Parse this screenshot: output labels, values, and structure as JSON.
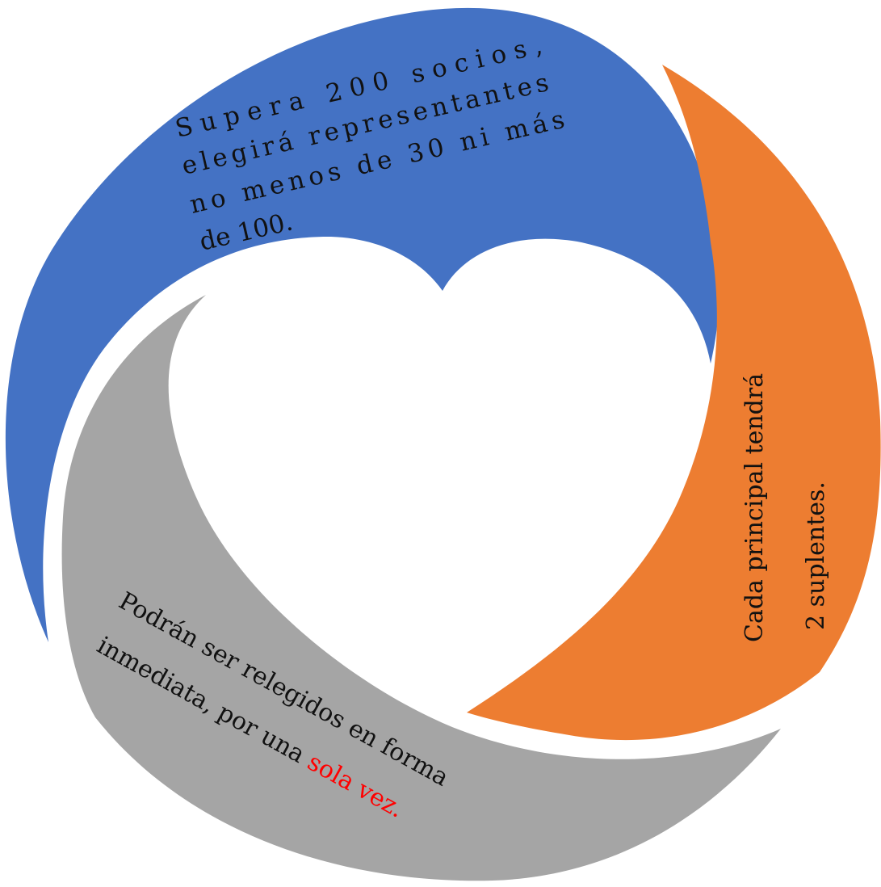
{
  "segments": [
    {
      "id": "blue",
      "color": "#4472C4",
      "lines": [
        "Supera 200 socios,",
        "elegirá representantes",
        "no menos de 30 ni más",
        "de 100."
      ]
    },
    {
      "id": "orange",
      "color": "#ED7D31",
      "lines": [
        "Cada principal tendrá",
        "2 suplentes."
      ]
    },
    {
      "id": "gray",
      "color": "#A5A5A5",
      "line1": "Podrán ser relegidos en forma",
      "line2_prefix": "inmediata, por una ",
      "line2_highlight": "sola vez.",
      "highlight_color": "#FF0000"
    }
  ]
}
